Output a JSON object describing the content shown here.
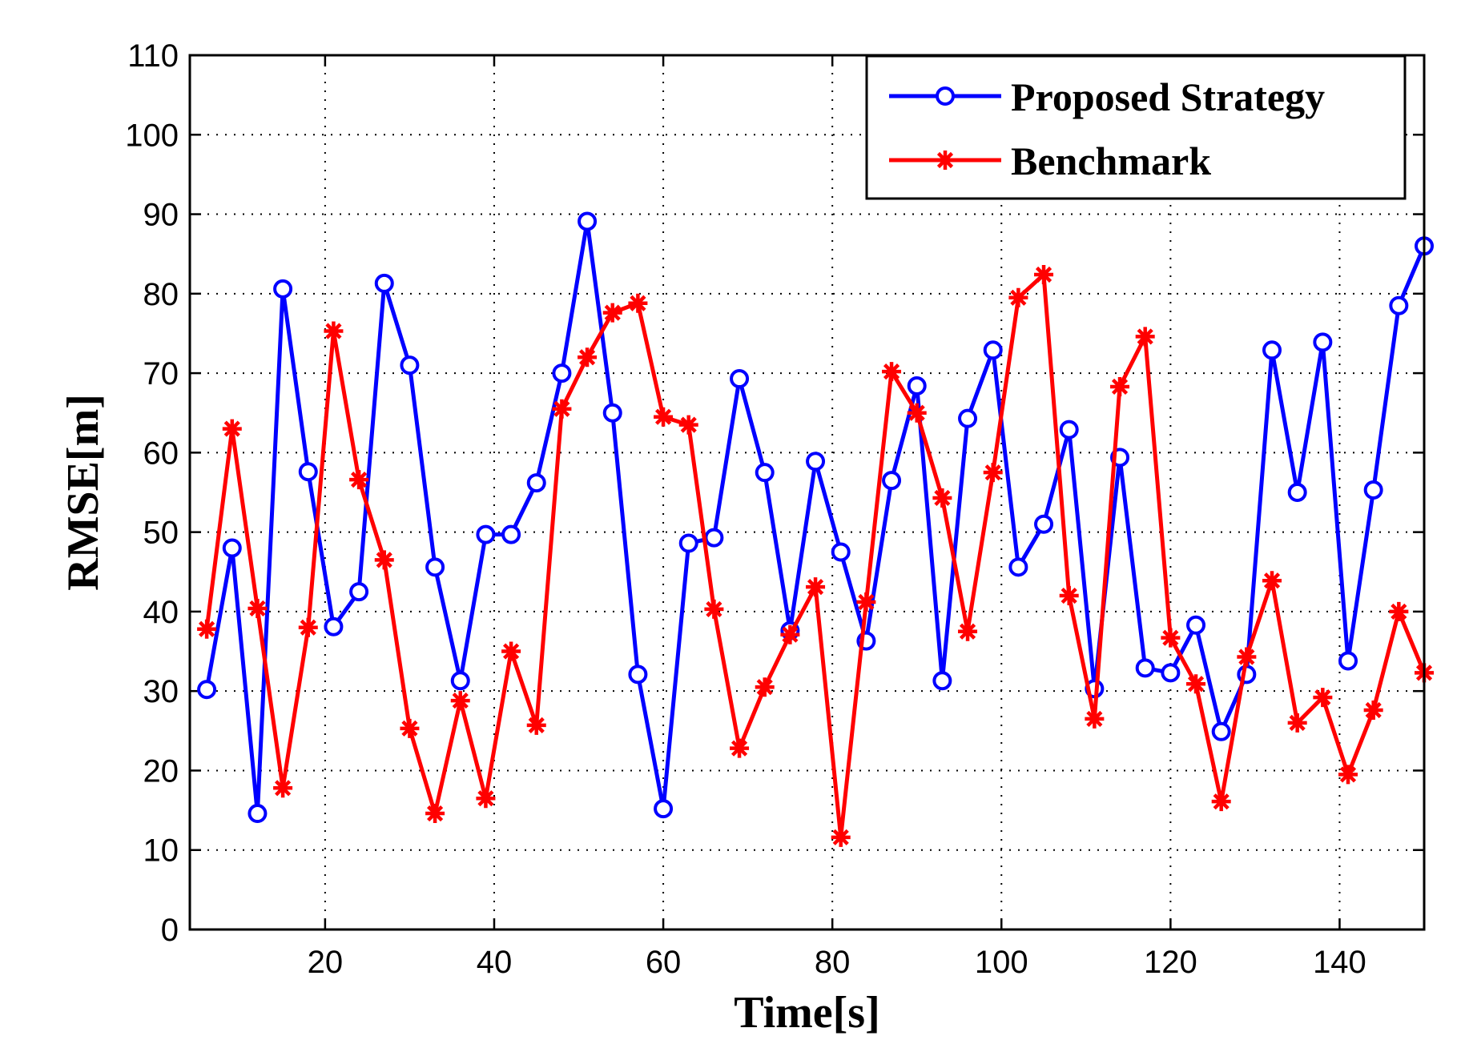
{
  "chart_data": {
    "type": "line",
    "title": "",
    "xlabel": "Time[s]",
    "ylabel": "RMSE[m]",
    "xlim": [
      4,
      150
    ],
    "ylim": [
      0,
      110
    ],
    "xticks": [
      20,
      40,
      60,
      80,
      100,
      120,
      140
    ],
    "yticks": [
      0,
      10,
      20,
      30,
      40,
      50,
      60,
      70,
      80,
      90,
      100,
      110
    ],
    "grid": true,
    "legend_position": "top-right",
    "x": [
      6,
      9,
      12,
      15,
      18,
      21,
      24,
      27,
      30,
      33,
      36,
      39,
      42,
      45,
      48,
      51,
      54,
      57,
      60,
      63,
      66,
      69,
      72,
      75,
      78,
      81,
      84,
      87,
      90,
      93,
      96,
      99,
      102,
      105,
      108,
      111,
      114,
      117,
      120,
      123,
      126,
      129,
      132,
      135,
      138,
      141,
      144,
      147,
      150
    ],
    "series": [
      {
        "name": "Proposed Strategy",
        "color": "#0000ff",
        "marker": "circle",
        "values": [
          30.2,
          48,
          14.6,
          80.6,
          57.6,
          38.1,
          42.5,
          81.3,
          71,
          45.6,
          31.3,
          49.7,
          49.7,
          56.2,
          70,
          89.1,
          65,
          32.1,
          15.2,
          48.6,
          49.3,
          69.3,
          57.5,
          37.6,
          58.9,
          47.5,
          36.3,
          56.5,
          68.4,
          31.3,
          64.3,
          72.9,
          45.6,
          51,
          62.9,
          30.3,
          59.4,
          32.9,
          32.3,
          38.3,
          24.9,
          32.1,
          72.9,
          55,
          73.9,
          33.8,
          55.3,
          78.5,
          86
        ]
      },
      {
        "name": "Benchmark",
        "color": "#ff0000",
        "marker": "star",
        "values": [
          37.8,
          63,
          40.4,
          17.8,
          38,
          75.3,
          56.6,
          46.5,
          25.3,
          14.6,
          28.8,
          16.5,
          35,
          25.7,
          65.5,
          72,
          77.6,
          78.8,
          64.5,
          63.5,
          40.3,
          22.8,
          30.5,
          37.1,
          43.1,
          11.6,
          41.2,
          70.2,
          65,
          54.3,
          37.5,
          57.5,
          79.5,
          82.4,
          42,
          26.5,
          68.3,
          74.6,
          36.7,
          30.9,
          16.1,
          34.3,
          43.9,
          26,
          29.2,
          19.5,
          27.6,
          40,
          32.3
        ]
      }
    ]
  }
}
